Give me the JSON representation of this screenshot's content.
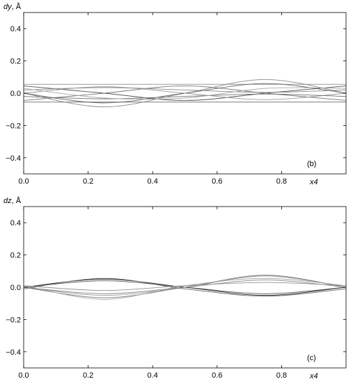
{
  "chart_data": [
    {
      "type": "line",
      "panel_label": "(b)",
      "ylabel_var": "dy",
      "ylabel_unit": ", Å",
      "xlabel": "x4",
      "xlim": [
        0.0,
        1.0
      ],
      "ylim": [
        -0.5,
        0.5
      ],
      "x_ticks": [
        "0.0",
        "0.2",
        "0.4",
        "0.6",
        "0.8"
      ],
      "y_ticks": [
        "-0.4",
        "-0.2",
        "0.0",
        "0.2",
        "0.4"
      ],
      "series": [
        {
          "points": [
            [
              0.0,
              0.055
            ],
            [
              0.25,
              0.055
            ],
            [
              0.5,
              0.055
            ],
            [
              0.75,
              0.055
            ],
            [
              1.0,
              0.055
            ]
          ],
          "color": "#9a9a9a"
        },
        {
          "points": [
            [
              0.0,
              -0.055
            ],
            [
              0.25,
              -0.055
            ],
            [
              0.5,
              -0.055
            ],
            [
              0.75,
              -0.055
            ],
            [
              1.0,
              -0.055
            ]
          ],
          "color": "#7a7a7a"
        },
        {
          "points": [
            [
              0.0,
              0.045
            ],
            [
              0.25,
              0.0
            ],
            [
              0.5,
              -0.045
            ],
            [
              0.75,
              0.0
            ],
            [
              1.0,
              0.045
            ]
          ],
          "color": "#555555"
        },
        {
          "points": [
            [
              0.0,
              -0.045
            ],
            [
              0.25,
              0.0
            ],
            [
              0.5,
              0.045
            ],
            [
              0.75,
              0.0
            ],
            [
              1.0,
              -0.045
            ]
          ],
          "color": "#777777"
        },
        {
          "points": [
            [
              0.0,
              0.0
            ],
            [
              0.25,
              -0.085
            ],
            [
              0.5,
              0.0
            ],
            [
              0.75,
              0.085
            ],
            [
              1.0,
              0.0
            ]
          ],
          "color": "#8a8a8a"
        },
        {
          "points": [
            [
              0.0,
              0.0
            ],
            [
              0.25,
              -0.06
            ],
            [
              0.5,
              0.0
            ],
            [
              0.75,
              0.06
            ],
            [
              1.0,
              0.0
            ]
          ],
          "color": "#666666"
        },
        {
          "points": [
            [
              0.0,
              0.0
            ],
            [
              0.25,
              0.04
            ],
            [
              0.5,
              0.0
            ],
            [
              0.75,
              -0.04
            ],
            [
              1.0,
              0.0
            ]
          ],
          "color": "#999999"
        },
        {
          "points": [
            [
              0.0,
              0.02
            ],
            [
              0.25,
              0.035
            ],
            [
              0.5,
              0.02
            ],
            [
              0.75,
              0.005
            ],
            [
              1.0,
              0.02
            ]
          ],
          "color": "#888888"
        },
        {
          "points": [
            [
              0.0,
              -0.02
            ],
            [
              0.25,
              -0.035
            ],
            [
              0.5,
              -0.02
            ],
            [
              0.75,
              -0.005
            ],
            [
              1.0,
              -0.02
            ]
          ],
          "color": "#707070"
        },
        {
          "points": [
            [
              0.0,
              0.03
            ],
            [
              0.25,
              -0.03
            ],
            [
              0.5,
              -0.03
            ],
            [
              0.75,
              0.03
            ],
            [
              1.0,
              0.03
            ]
          ],
          "color": "#a5a5a5"
        }
      ]
    },
    {
      "type": "line",
      "panel_label": "(c)",
      "ylabel_var": "dz",
      "ylabel_unit": ", Å",
      "xlabel": "x4",
      "xlim": [
        0.0,
        1.0
      ],
      "ylim": [
        -0.5,
        0.5
      ],
      "x_ticks": [
        "0.0",
        "0.2",
        "0.4",
        "0.6",
        "0.8"
      ],
      "y_ticks": [
        "-0.4",
        "-0.2",
        "0.0",
        "0.2",
        "0.4"
      ],
      "series": [
        {
          "points": [
            [
              0.0,
              0.0
            ],
            [
              0.25,
              0.05
            ],
            [
              0.5,
              0.0
            ],
            [
              0.75,
              -0.05
            ],
            [
              1.0,
              0.0
            ]
          ],
          "color": "#222222"
        },
        {
          "points": [
            [
              0.0,
              0.0
            ],
            [
              0.25,
              0.04
            ],
            [
              0.5,
              0.0
            ],
            [
              0.75,
              -0.04
            ],
            [
              1.0,
              0.0
            ]
          ],
          "color": "#555555"
        },
        {
          "points": [
            [
              0.0,
              0.0
            ],
            [
              0.25,
              -0.05
            ],
            [
              0.5,
              0.0
            ],
            [
              0.75,
              0.07
            ],
            [
              1.0,
              0.0
            ]
          ],
          "color": "#999999"
        },
        {
          "points": [
            [
              0.0,
              0.0
            ],
            [
              0.25,
              -0.065
            ],
            [
              0.5,
              0.0
            ],
            [
              0.75,
              0.075
            ],
            [
              1.0,
              0.0
            ]
          ],
          "color": "#777777"
        },
        {
          "points": [
            [
              0.0,
              0.0
            ],
            [
              0.25,
              -0.04
            ],
            [
              0.5,
              0.0
            ],
            [
              0.75,
              0.045
            ],
            [
              1.0,
              0.0
            ]
          ],
          "color": "#888888"
        },
        {
          "points": [
            [
              0.0,
              0.01
            ],
            [
              0.25,
              -0.075
            ],
            [
              0.5,
              0.01
            ],
            [
              0.75,
              0.055
            ],
            [
              1.0,
              0.01
            ]
          ],
          "color": "#aaaaaa"
        },
        {
          "points": [
            [
              0.0,
              -0.01
            ],
            [
              0.25,
              0.055
            ],
            [
              0.5,
              -0.01
            ],
            [
              0.75,
              -0.055
            ],
            [
              1.0,
              -0.01
            ]
          ],
          "color": "#666666"
        },
        {
          "points": [
            [
              0.0,
              0.01
            ],
            [
              0.25,
              -0.02
            ],
            [
              0.5,
              0.01
            ],
            [
              0.75,
              0.03
            ],
            [
              1.0,
              0.01
            ]
          ],
          "color": "#8f8f8f"
        }
      ]
    }
  ]
}
